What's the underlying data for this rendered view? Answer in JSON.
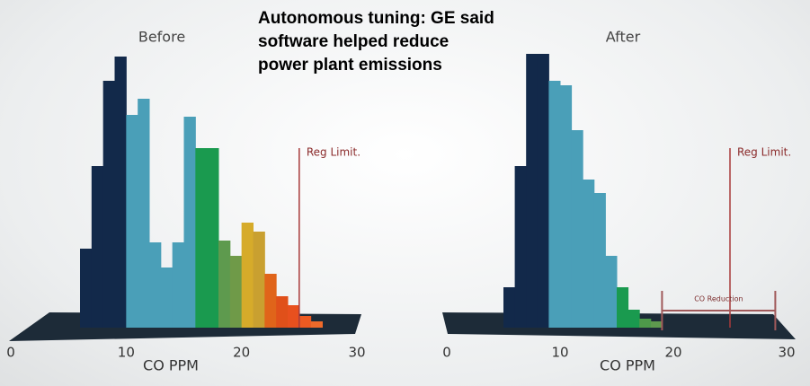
{
  "header": {
    "title": "Autonomous tuning: GE said software helped reduce power plant emissions"
  },
  "chart_data": [
    {
      "type": "histogram",
      "title": "Before",
      "x_label": "CO PPM",
      "bins": [
        6,
        7,
        8,
        9,
        10,
        11,
        12,
        13,
        14,
        15,
        16,
        17,
        18,
        19,
        20,
        21,
        22,
        23,
        24,
        25,
        26,
        27
      ],
      "values": [
        88,
        180,
        275,
        302,
        237,
        255,
        95,
        67,
        95,
        235,
        200,
        200,
        97,
        80,
        117,
        107,
        60,
        35,
        25,
        13,
        7
      ],
      "colors": [
        "#12294a",
        "#12294a",
        "#12294a",
        "#12294a",
        "#4a9fb8",
        "#4a9fb8",
        "#4a9fb8",
        "#4a9fb8",
        "#4a9fb8",
        "#4a9fb8",
        "#1a9a4f",
        "#1a9a4f",
        "#5e9a4e",
        "#6f9a48",
        "#d6ab2a",
        "#c9a030",
        "#e0641a",
        "#e0501a",
        "#e8501e",
        "#ec5a22",
        "#ef6a2a"
      ],
      "xlim": [
        0,
        30
      ],
      "xticks": [
        0,
        10,
        20,
        30
      ],
      "ylim": [
        0,
        320
      ],
      "annotations": [
        {
          "text": "Reg Limit.",
          "x": 25
        }
      ]
    },
    {
      "type": "histogram",
      "title": "After",
      "x_label": "CO PPM",
      "bins": [
        5,
        6,
        7,
        8,
        9,
        10,
        11,
        12,
        13,
        14,
        15,
        16,
        17,
        18,
        19
      ],
      "values": [
        45,
        180,
        305,
        305,
        275,
        270,
        220,
        165,
        150,
        80,
        45,
        20,
        10,
        7
      ],
      "colors": [
        "#12294a",
        "#12294a",
        "#12294a",
        "#12294a",
        "#4a9fb8",
        "#4a9fb8",
        "#4a9fb8",
        "#4a9fb8",
        "#4a9fb8",
        "#4a9fb8",
        "#1a9a4f",
        "#1a9a4f",
        "#4e9a4a",
        "#5e9a4e"
      ],
      "xlim": [
        0,
        30
      ],
      "xticks": [
        0,
        10,
        20,
        30
      ],
      "ylim": [
        0,
        320
      ],
      "annotations": [
        {
          "text": "Reg Limit.",
          "x": 25
        },
        {
          "text": "CO Reduction",
          "x": [
            19,
            29
          ]
        }
      ]
    }
  ]
}
